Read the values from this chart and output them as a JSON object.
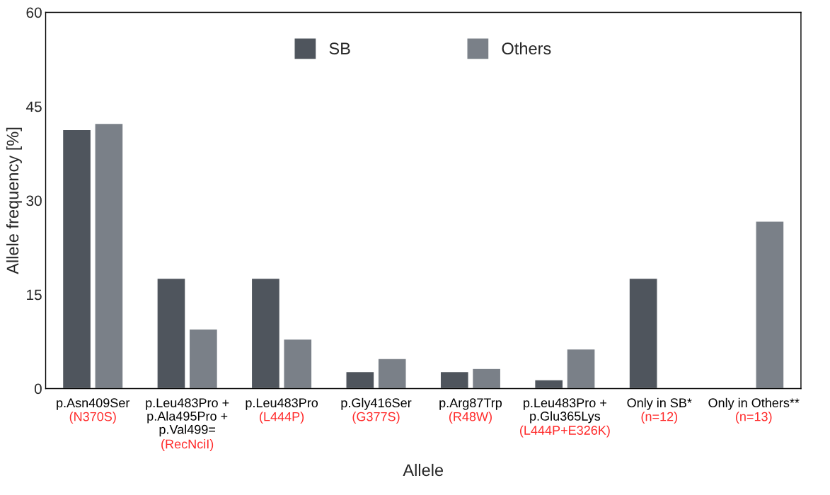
{
  "chart_data": {
    "type": "bar",
    "xlabel": "Allele",
    "ylabel": "Allele frequency [%]",
    "categories": [
      "p.Asn409Ser\n(N370S)",
      "p.Leu483Pro +\np.Ala495Pro +\np.Val499=\n(RecNciI)",
      "p.Leu483Pro\n(L444P)",
      "p.Gly416Ser\n(G377S)",
      "p.Arg87Trp\n(R48W)",
      "p.Leu483Pro +\np.Glu365Lys\n(L444P+E326K)",
      "Only in SB*\n(n=12)",
      "Only in Others**\n(n=13)"
    ],
    "series": [
      {
        "name": "SB",
        "color": "#4f555d",
        "values": [
          41.3,
          17.6,
          17.6,
          2.7,
          2.7,
          1.4,
          17.6,
          null
        ]
      },
      {
        "name": "Others",
        "color": "#7a8088",
        "values": [
          42.3,
          9.5,
          7.9,
          4.8,
          3.2,
          6.3,
          null,
          26.7
        ]
      }
    ],
    "ylim": [
      0,
      60
    ],
    "yticks": [
      0,
      15,
      30,
      45,
      60
    ],
    "grid": false,
    "legend": "top"
  }
}
